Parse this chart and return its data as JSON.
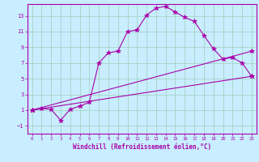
{
  "xlabel": "Windchill (Refroidissement éolien,°C)",
  "xlim": [
    -0.5,
    23.5
  ],
  "ylim": [
    -2.0,
    14.5
  ],
  "xticks": [
    0,
    1,
    2,
    3,
    4,
    5,
    6,
    7,
    8,
    9,
    10,
    11,
    12,
    13,
    14,
    15,
    16,
    17,
    18,
    19,
    20,
    21,
    22,
    23
  ],
  "yticks": [
    -1,
    1,
    3,
    5,
    7,
    9,
    11,
    13
  ],
  "bg_color": "#c8eeff",
  "grid_color": "#a0ccbb",
  "line_color": "#aa00aa",
  "line1_x": [
    0,
    1,
    2,
    3,
    4,
    5,
    6,
    7,
    8,
    9,
    10,
    11,
    12,
    13,
    14,
    15,
    16,
    17,
    18,
    19,
    20,
    21,
    22,
    23
  ],
  "line1_y": [
    1.0,
    1.2,
    1.1,
    -0.3,
    1.1,
    1.5,
    2.0,
    7.0,
    8.3,
    8.5,
    11.0,
    11.2,
    13.1,
    14.0,
    14.2,
    13.5,
    12.8,
    12.3,
    10.5,
    8.8,
    7.5,
    7.7,
    7.0,
    5.3
  ],
  "line2_x": [
    0,
    23
  ],
  "line2_y": [
    1.0,
    8.5
  ],
  "line3_x": [
    0,
    23
  ],
  "line3_y": [
    1.0,
    5.3
  ]
}
